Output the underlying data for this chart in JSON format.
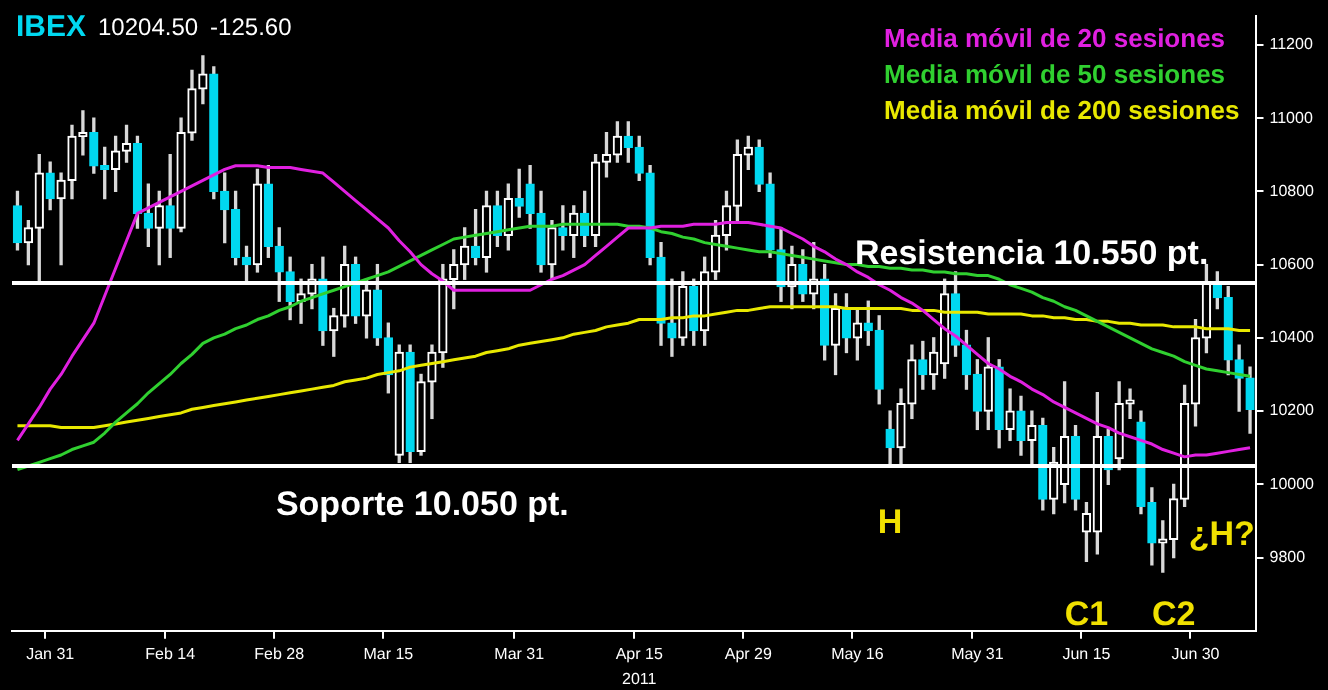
{
  "chart_data": {
    "type": "candlestick",
    "title": "IBEX 10204.50 -125.60",
    "categories": [
      null,
      null,
      null,
      "Jan 31",
      null,
      null,
      null,
      null,
      null,
      null,
      null,
      null,
      null,
      null,
      "Feb 14",
      null,
      null,
      null,
      null,
      null,
      null,
      null,
      null,
      null,
      "Feb 28",
      null,
      null,
      null,
      null,
      null,
      null,
      null,
      null,
      null,
      "Mar 15",
      null,
      null,
      null,
      null,
      null,
      null,
      null,
      null,
      null,
      null,
      null,
      "Mar 31",
      null,
      null,
      null,
      null,
      null,
      null,
      null,
      null,
      null,
      null,
      "Apr 15",
      null,
      null,
      null,
      null,
      null,
      null,
      null,
      null,
      null,
      "Apr 29",
      null,
      null,
      null,
      null,
      null,
      null,
      null,
      null,
      null,
      "May 16",
      null,
      null,
      null,
      null,
      null,
      null,
      null,
      null,
      null,
      null,
      "May 31",
      null,
      null,
      null,
      null,
      null,
      null,
      null,
      null,
      null,
      "Jun 15",
      null,
      null,
      null,
      null,
      null,
      null,
      null,
      null,
      null,
      "Jun 30",
      null,
      null,
      null,
      null,
      null
    ],
    "ohlc": [
      [
        10760,
        10800,
        10640,
        10660
      ],
      [
        10660,
        10720,
        10600,
        10700
      ],
      [
        10700,
        10900,
        10550,
        10850
      ],
      [
        10850,
        10880,
        10750,
        10780
      ],
      [
        10780,
        10850,
        10600,
        10830
      ],
      [
        10830,
        10980,
        10780,
        10950
      ],
      [
        10950,
        11020,
        10900,
        10960
      ],
      [
        10960,
        11000,
        10850,
        10870
      ],
      [
        10870,
        10920,
        10780,
        10860
      ],
      [
        10860,
        10950,
        10800,
        10910
      ],
      [
        10910,
        10980,
        10880,
        10930
      ],
      [
        10930,
        10950,
        10700,
        10740
      ],
      [
        10740,
        10820,
        10650,
        10700
      ],
      [
        10700,
        10800,
        10600,
        10760
      ],
      [
        10760,
        10900,
        10620,
        10700
      ],
      [
        10700,
        11000,
        10690,
        10960
      ],
      [
        10960,
        11130,
        10940,
        11080
      ],
      [
        11080,
        11170,
        11040,
        11120
      ],
      [
        11120,
        11140,
        10780,
        10800
      ],
      [
        10800,
        10850,
        10660,
        10750
      ],
      [
        10750,
        10800,
        10600,
        10620
      ],
      [
        10620,
        10650,
        10550,
        10600
      ],
      [
        10600,
        10860,
        10580,
        10820
      ],
      [
        10820,
        10870,
        10620,
        10650
      ],
      [
        10650,
        10700,
        10500,
        10580
      ],
      [
        10580,
        10620,
        10450,
        10500
      ],
      [
        10500,
        10560,
        10440,
        10520
      ],
      [
        10520,
        10600,
        10480,
        10560
      ],
      [
        10560,
        10620,
        10380,
        10420
      ],
      [
        10420,
        10480,
        10350,
        10460
      ],
      [
        10460,
        10650,
        10430,
        10600
      ],
      [
        10600,
        10620,
        10440,
        10460
      ],
      [
        10460,
        10560,
        10400,
        10530
      ],
      [
        10530,
        10600,
        10380,
        10400
      ],
      [
        10400,
        10440,
        10250,
        10300
      ],
      [
        10080,
        10380,
        10060,
        10360
      ],
      [
        10360,
        10380,
        10060,
        10090
      ],
      [
        10090,
        10300,
        10080,
        10280
      ],
      [
        10280,
        10380,
        10180,
        10360
      ],
      [
        10360,
        10600,
        10320,
        10560
      ],
      [
        10560,
        10640,
        10480,
        10600
      ],
      [
        10600,
        10700,
        10560,
        10650
      ],
      [
        10650,
        10750,
        10600,
        10620
      ],
      [
        10620,
        10800,
        10580,
        10760
      ],
      [
        10760,
        10800,
        10650,
        10680
      ],
      [
        10680,
        10820,
        10640,
        10780
      ],
      [
        10780,
        10860,
        10730,
        10760
      ],
      [
        10820,
        10870,
        10700,
        10740
      ],
      [
        10740,
        10800,
        10580,
        10600
      ],
      [
        10600,
        10720,
        10560,
        10700
      ],
      [
        10700,
        10760,
        10640,
        10680
      ],
      [
        10680,
        10760,
        10620,
        10740
      ],
      [
        10740,
        10800,
        10650,
        10680
      ],
      [
        10680,
        10900,
        10650,
        10880
      ],
      [
        10880,
        10960,
        10840,
        10900
      ],
      [
        10900,
        10990,
        10880,
        10950
      ],
      [
        10950,
        10990,
        10880,
        10920
      ],
      [
        10920,
        10950,
        10830,
        10850
      ],
      [
        10850,
        10870,
        10600,
        10620
      ],
      [
        10620,
        10660,
        10380,
        10440
      ],
      [
        10440,
        10560,
        10350,
        10400
      ],
      [
        10400,
        10580,
        10380,
        10540
      ],
      [
        10540,
        10560,
        10380,
        10420
      ],
      [
        10420,
        10620,
        10380,
        10580
      ],
      [
        10580,
        10720,
        10560,
        10680
      ],
      [
        10680,
        10800,
        10640,
        10760
      ],
      [
        10760,
        10940,
        10720,
        10900
      ],
      [
        10900,
        10950,
        10860,
        10920
      ],
      [
        10920,
        10940,
        10800,
        10820
      ],
      [
        10820,
        10850,
        10620,
        10640
      ],
      [
        10640,
        10700,
        10500,
        10540
      ],
      [
        10540,
        10650,
        10480,
        10600
      ],
      [
        10600,
        10640,
        10500,
        10520
      ],
      [
        10520,
        10660,
        10480,
        10560
      ],
      [
        10560,
        10600,
        10340,
        10380
      ],
      [
        10380,
        10520,
        10300,
        10480
      ],
      [
        10480,
        10520,
        10360,
        10400
      ],
      [
        10400,
        10480,
        10340,
        10440
      ],
      [
        10440,
        10500,
        10380,
        10420
      ],
      [
        10420,
        10460,
        10220,
        10260
      ],
      [
        10150,
        10200,
        10050,
        10100
      ],
      [
        10100,
        10260,
        10050,
        10220
      ],
      [
        10220,
        10380,
        10180,
        10340
      ],
      [
        10340,
        10390,
        10260,
        10300
      ],
      [
        10300,
        10400,
        10260,
        10360
      ],
      [
        10330,
        10560,
        10290,
        10520
      ],
      [
        10520,
        10580,
        10350,
        10380
      ],
      [
        10380,
        10420,
        10260,
        10300
      ],
      [
        10300,
        10340,
        10150,
        10200
      ],
      [
        10200,
        10400,
        10150,
        10320
      ],
      [
        10320,
        10340,
        10100,
        10150
      ],
      [
        10150,
        10260,
        10120,
        10200
      ],
      [
        10200,
        10240,
        10080,
        10120
      ],
      [
        10120,
        10200,
        10050,
        10160
      ],
      [
        10160,
        10180,
        9930,
        9960
      ],
      [
        9960,
        10100,
        9920,
        10060
      ],
      [
        10000,
        10280,
        9950,
        10130
      ],
      [
        10130,
        10160,
        9930,
        9960
      ],
      [
        9870,
        9950,
        9790,
        9920
      ],
      [
        9870,
        10250,
        9810,
        10130
      ],
      [
        10130,
        10150,
        10000,
        10040
      ],
      [
        10070,
        10280,
        10040,
        10220
      ],
      [
        10220,
        10260,
        10180,
        10230
      ],
      [
        10170,
        10200,
        9920,
        9940
      ],
      [
        9950,
        9990,
        9780,
        9840
      ],
      [
        9840,
        9900,
        9760,
        9850
      ],
      [
        9850,
        10000,
        9800,
        9960
      ],
      [
        9960,
        10270,
        9940,
        10220
      ],
      [
        10220,
        10450,
        10160,
        10400
      ],
      [
        10400,
        10600,
        10360,
        10550
      ],
      [
        10550,
        10580,
        10480,
        10510
      ],
      [
        10510,
        10540,
        10300,
        10340
      ],
      [
        10340,
        10380,
        10200,
        10290
      ],
      [
        10290,
        10320,
        10140,
        10204.5
      ]
    ],
    "colors": [
      "#00d8f0",
      "#ffffff",
      "#ffffff",
      "#00d8f0",
      "#ffffff",
      "#ffffff",
      "#ffffff",
      "#00d8f0",
      "#00d8f0",
      "#ffffff",
      "#ffffff",
      "#00d8f0",
      "#00d8f0",
      "#ffffff",
      "#00d8f0",
      "#ffffff",
      "#ffffff",
      "#ffffff",
      "#00d8f0",
      "#00d8f0",
      "#00d8f0",
      "#00d8f0",
      "#ffffff",
      "#00d8f0",
      "#00d8f0",
      "#00d8f0",
      "#ffffff",
      "#ffffff",
      "#00d8f0",
      "#ffffff",
      "#ffffff",
      "#00d8f0",
      "#ffffff",
      "#00d8f0",
      "#00d8f0",
      "#ffffff",
      "#00d8f0",
      "#ffffff",
      "#ffffff",
      "#ffffff",
      "#ffffff",
      "#ffffff",
      "#00d8f0",
      "#ffffff",
      "#00d8f0",
      "#ffffff",
      "#00d8f0",
      "#00d8f0",
      "#00d8f0",
      "#ffffff",
      "#00d8f0",
      "#ffffff",
      "#00d8f0",
      "#ffffff",
      "#ffffff",
      "#ffffff",
      "#00d8f0",
      "#00d8f0",
      "#00d8f0",
      "#00d8f0",
      "#00d8f0",
      "#ffffff",
      "#00d8f0",
      "#ffffff",
      "#ffffff",
      "#ffffff",
      "#ffffff",
      "#ffffff",
      "#00d8f0",
      "#00d8f0",
      "#00d8f0",
      "#ffffff",
      "#00d8f0",
      "#ffffff",
      "#00d8f0",
      "#ffffff",
      "#00d8f0",
      "#ffffff",
      "#00d8f0",
      "#00d8f0",
      "#00d8f0",
      "#ffffff",
      "#ffffff",
      "#00d8f0",
      "#ffffff",
      "#ffffff",
      "#00d8f0",
      "#00d8f0",
      "#00d8f0",
      "#ffffff",
      "#00d8f0",
      "#ffffff",
      "#00d8f0",
      "#ffffff",
      "#00d8f0",
      "#ffffff",
      "#ffffff",
      "#00d8f0",
      "#ffffff",
      "#ffffff",
      "#00d8f0",
      "#ffffff",
      "#ffffff",
      "#00d8f0",
      "#00d8f0",
      "#ffffff",
      "#ffffff",
      "#ffffff",
      "#ffffff",
      "#ffffff",
      "#00d8f0",
      "#00d8f0",
      "#00d8f0",
      "#00d8f0"
    ],
    "series": [
      {
        "name": "Media móvil de 20 sesiones",
        "type": "line",
        "color": "#e020e0",
        "values": [
          10120,
          10165,
          10210,
          10260,
          10300,
          10350,
          10395,
          10440,
          10515,
          10590,
          10665,
          10740,
          10755,
          10770,
          10785,
          10800,
          10815,
          10830,
          10845,
          10860,
          10870,
          10870,
          10870,
          10865,
          10865,
          10865,
          10860,
          10855,
          10850,
          10825,
          10800,
          10775,
          10750,
          10725,
          10700,
          10665,
          10635,
          10600,
          10575,
          10555,
          10530,
          10530,
          10530,
          10530,
          10530,
          10530,
          10530,
          10530,
          10545,
          10560,
          10570,
          10585,
          10600,
          10625,
          10650,
          10675,
          10700,
          10700,
          10700,
          10705,
          10705,
          10705,
          10710,
          10710,
          10710,
          10715,
          10715,
          10715,
          10710,
          10705,
          10700,
          10685,
          10670,
          10650,
          10635,
          10615,
          10600,
          10580,
          10565,
          10545,
          10530,
          10510,
          10495,
          10475,
          10450,
          10425,
          10405,
          10380,
          10355,
          10330,
          10315,
          10295,
          10280,
          10260,
          10245,
          10225,
          10210,
          10195,
          10180,
          10165,
          10155,
          10140,
          10130,
          10120,
          10110,
          10095,
          10085,
          10075,
          10080,
          10080,
          10085,
          10090,
          10095,
          10100
        ]
      },
      {
        "name": "Media móvil de 50 sesiones",
        "type": "line",
        "color": "#30d030",
        "values": [
          10040,
          10050,
          10060,
          10070,
          10080,
          10095,
          10105,
          10115,
          10140,
          10170,
          10195,
          10220,
          10250,
          10275,
          10300,
          10330,
          10355,
          10385,
          10400,
          10410,
          10425,
          10435,
          10450,
          10460,
          10475,
          10485,
          10500,
          10510,
          10520,
          10530,
          10540,
          10550,
          10560,
          10570,
          10580,
          10595,
          10610,
          10625,
          10640,
          10655,
          10670,
          10675,
          10680,
          10685,
          10690,
          10695,
          10700,
          10705,
          10705,
          10705,
          10710,
          10710,
          10710,
          10710,
          10710,
          10710,
          10705,
          10705,
          10700,
          10690,
          10685,
          10675,
          10670,
          10660,
          10655,
          10650,
          10645,
          10640,
          10635,
          10635,
          10630,
          10625,
          10620,
          10615,
          10610,
          10605,
          10600,
          10600,
          10595,
          10595,
          10590,
          10590,
          10585,
          10585,
          10580,
          10580,
          10575,
          10575,
          10570,
          10570,
          10560,
          10545,
          10535,
          10525,
          10510,
          10500,
          10485,
          10475,
          10460,
          10445,
          10430,
          10415,
          10400,
          10385,
          10370,
          10360,
          10350,
          10335,
          10325,
          10315,
          10310,
          10305,
          10300,
          10295
        ]
      },
      {
        "name": "Media móvil de 200 sesiones",
        "type": "line",
        "color": "#e8e800",
        "values": [
          10160,
          10160,
          10160,
          10160,
          10155,
          10155,
          10155,
          10155,
          10160,
          10165,
          10170,
          10175,
          10180,
          10185,
          10190,
          10195,
          10205,
          10210,
          10215,
          10220,
          10225,
          10230,
          10235,
          10240,
          10245,
          10250,
          10255,
          10260,
          10265,
          10270,
          10280,
          10285,
          10290,
          10300,
          10305,
          10310,
          10320,
          10325,
          10330,
          10335,
          10340,
          10345,
          10350,
          10360,
          10365,
          10370,
          10380,
          10385,
          10390,
          10395,
          10400,
          10410,
          10415,
          10420,
          10430,
          10435,
          10440,
          10450,
          10450,
          10450,
          10455,
          10455,
          10460,
          10460,
          10465,
          10470,
          10475,
          10475,
          10480,
          10485,
          10485,
          10485,
          10485,
          10485,
          10485,
          10485,
          10480,
          10480,
          10480,
          10480,
          10480,
          10480,
          10475,
          10475,
          10475,
          10470,
          10470,
          10470,
          10470,
          10465,
          10465,
          10465,
          10465,
          10460,
          10460,
          10455,
          10455,
          10450,
          10450,
          10445,
          10445,
          10440,
          10440,
          10435,
          10435,
          10435,
          10430,
          10430,
          10430,
          10425,
          10425,
          10425,
          10420,
          10420
        ]
      }
    ],
    "ylim": [
      9600,
      11280
    ],
    "yticks": [
      9800,
      10000,
      10200,
      10400,
      10600,
      10800,
      11000,
      11200
    ],
    "ref_lines": [
      {
        "axis": "y",
        "value": 10550,
        "label": "Resistencia 10.550 pt.",
        "color": "#ffffff"
      },
      {
        "axis": "y",
        "value": 10050,
        "label": "Soporte 10.050 pt.",
        "color": "#ffffff"
      }
    ],
    "annotations": [
      "H",
      "C1",
      "C2",
      "¿H?",
      "2011"
    ],
    "legend": "top right",
    "grid": false
  }
}
